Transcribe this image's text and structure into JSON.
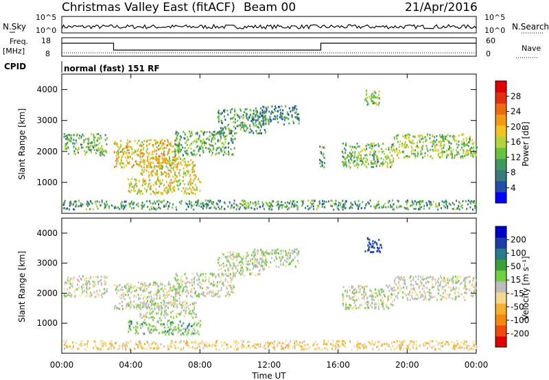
{
  "header": {
    "title": "Christmas Valley East (fitACF)",
    "beam": "Beam 00",
    "date": "21/Apr/2016"
  },
  "top_panels": {
    "nsky_label": "N.Sky",
    "nsky_ticks": [
      "10^5",
      "10^0"
    ],
    "nsearch_label": "N.Search",
    "nsearch_ticks": [
      "10^5",
      "10^0"
    ],
    "freq_label": "Freq.",
    "freq_unit": "[MHz]",
    "freq_ticks": [
      "18",
      "8"
    ],
    "nave_label": "Nave",
    "nave_ticks": [
      "60",
      "0"
    ],
    "cpid_label": "CPID",
    "cpid_text": "normal (fast) 151 RF"
  },
  "colors": {
    "power": [
      "#0000ff",
      "#1f4fa8",
      "#3a7a7a",
      "#3f9a5a",
      "#66c23f",
      "#b5d33a",
      "#f2c21f",
      "#f39a12",
      "#ec6a10",
      "#e03010",
      "#e00000"
    ],
    "velocity": [
      "#e00000",
      "#f04a10",
      "#f38a10",
      "#f5b030",
      "#f5d890",
      "#bdbdbd",
      "#6fcf3f",
      "#3aa03a",
      "#2a7a8a",
      "#1a3fa8",
      "#0000cc"
    ],
    "ground": "#9a9a9a"
  },
  "chart_data": [
    {
      "type": "heatmap",
      "panel": "power",
      "ylabel": "Slant Range [km]",
      "yticks": [
        "1000",
        "2000",
        "3000",
        "4000"
      ],
      "ylim": [
        0,
        4500
      ],
      "xlim": [
        "00:00",
        "24:00"
      ],
      "colorbar_label": "Power [dB]",
      "colorbar_ticks": [
        "4",
        "8",
        "12",
        "16",
        "20",
        "24",
        "28"
      ],
      "colorbar_range": [
        0,
        32
      ],
      "regions": [
        {
          "t0": 0.1,
          "t1": 2.6,
          "r0": 1900,
          "r1": 2600,
          "level": 0.35
        },
        {
          "t0": 3.0,
          "t1": 6.8,
          "r0": 1500,
          "r1": 2400,
          "level": 0.6
        },
        {
          "t0": 4.5,
          "t1": 7.8,
          "r0": 1200,
          "r1": 1800,
          "level": 0.55
        },
        {
          "t0": 3.8,
          "t1": 8.0,
          "r0": 650,
          "r1": 1150,
          "level": 0.55
        },
        {
          "t0": 6.5,
          "t1": 10.0,
          "r0": 1900,
          "r1": 2700,
          "level": 0.35
        },
        {
          "t0": 9.0,
          "t1": 11.8,
          "r0": 2600,
          "r1": 3400,
          "level": 0.3
        },
        {
          "t0": 11.0,
          "t1": 13.7,
          "r0": 2900,
          "r1": 3500,
          "level": 0.25
        },
        {
          "t0": 14.9,
          "t1": 15.2,
          "r0": 1500,
          "r1": 2300,
          "level": 0.3
        },
        {
          "t0": 16.2,
          "t1": 19.2,
          "r0": 1500,
          "r1": 2300,
          "level": 0.4
        },
        {
          "t0": 17.5,
          "t1": 18.5,
          "r0": 3500,
          "r1": 4000,
          "level": 0.45
        },
        {
          "t0": 19.2,
          "t1": 24.0,
          "r0": 1800,
          "r1": 2600,
          "level": 0.45
        },
        {
          "t0": 0.0,
          "t1": 24.0,
          "r0": 150,
          "r1": 450,
          "level": 0.3
        }
      ]
    },
    {
      "type": "heatmap",
      "panel": "velocity",
      "ylabel": "Slant Range [km]",
      "yticks": [
        "1000",
        "2000",
        "3000",
        "4000"
      ],
      "ylim": [
        0,
        4500
      ],
      "xticks": [
        "00:00",
        "04:00",
        "08:00",
        "12:00",
        "16:00",
        "20:00",
        "00:00"
      ],
      "xlabel": "Time UT",
      "colorbar_label": "Velocity [m s⁻¹]",
      "colorbar_ticks": [
        "-200",
        "-100",
        "-50",
        "-15",
        "15",
        "50",
        "100",
        "200"
      ],
      "regions": [
        {
          "t0": 0.1,
          "t1": 2.6,
          "r0": 1900,
          "r1": 2600,
          "velocity": -5
        },
        {
          "t0": 3.0,
          "t1": 6.8,
          "r0": 1500,
          "r1": 2400,
          "velocity": 0
        },
        {
          "t0": 4.5,
          "t1": 7.8,
          "r0": 1200,
          "r1": 1800,
          "velocity": 2
        },
        {
          "t0": 3.8,
          "t1": 8.0,
          "r0": 650,
          "r1": 1150,
          "velocity": 30
        },
        {
          "t0": 6.5,
          "t1": 10.0,
          "r0": 1900,
          "r1": 2700,
          "velocity": 0
        },
        {
          "t0": 9.0,
          "t1": 11.8,
          "r0": 2600,
          "r1": 3400,
          "velocity": 5
        },
        {
          "t0": 11.0,
          "t1": 13.7,
          "r0": 2900,
          "r1": 3500,
          "velocity": 10
        },
        {
          "t0": 16.2,
          "t1": 19.2,
          "r0": 1500,
          "r1": 2300,
          "velocity": 0
        },
        {
          "t0": 17.5,
          "t1": 18.5,
          "r0": 3400,
          "r1": 3900,
          "velocity": 150
        },
        {
          "t0": 19.2,
          "t1": 24.0,
          "r0": 1800,
          "r1": 2600,
          "velocity": -5
        },
        {
          "t0": 0.0,
          "t1": 24.0,
          "r0": 150,
          "r1": 450,
          "velocity": -40
        }
      ]
    }
  ]
}
